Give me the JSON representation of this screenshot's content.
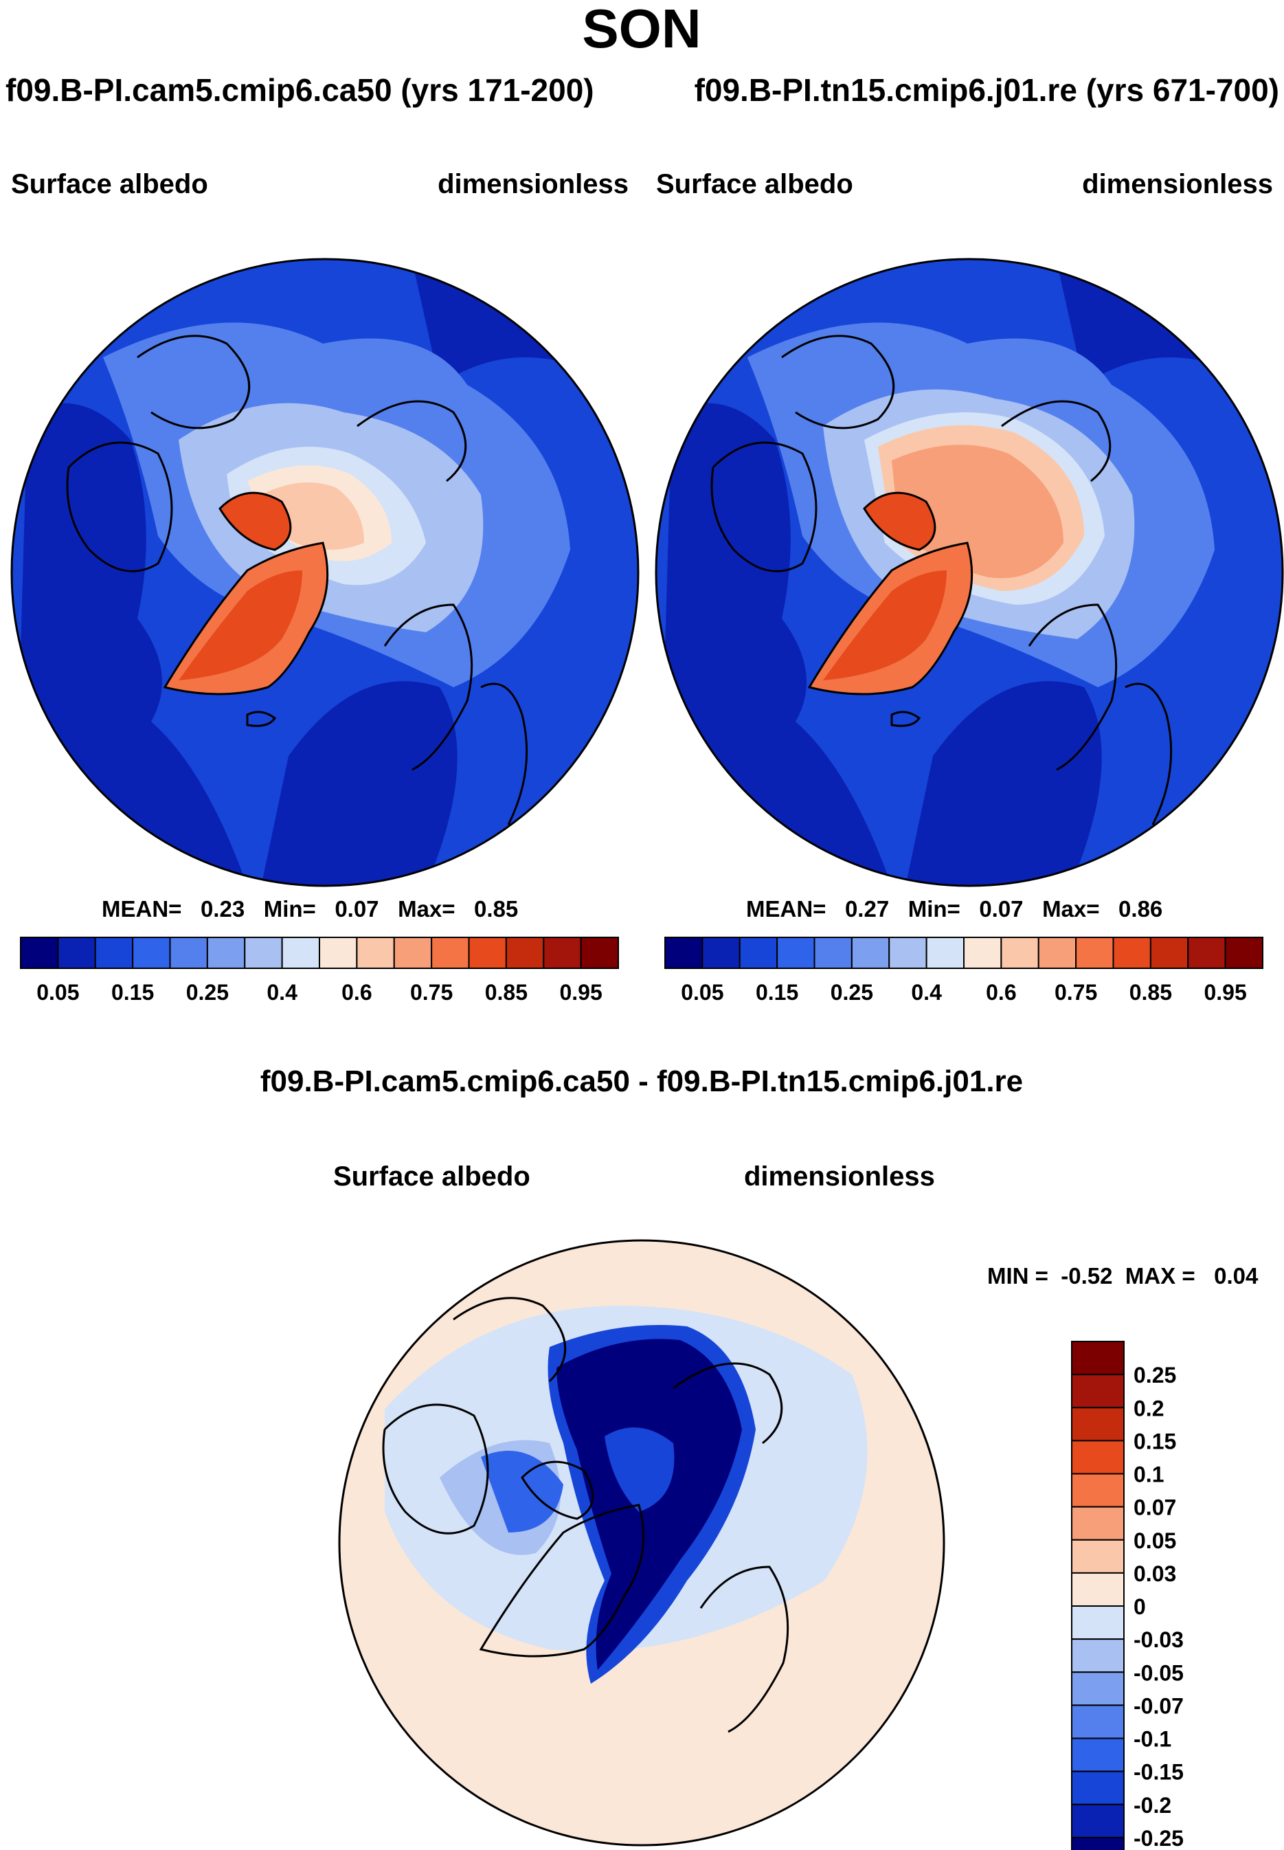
{
  "page_title": "SON",
  "panels": [
    {
      "case_title": "f09.B-PI.cam5.cmip6.ca50 (yrs 171-200)",
      "left_label": "Surface albedo",
      "right_label": "dimensionless",
      "stats": {
        "mean_label": "MEAN=",
        "mean": "0.23",
        "min_label": "Min=",
        "min": "0.07",
        "max_label": "Max=",
        "max": "0.85"
      }
    },
    {
      "case_title": "f09.B-PI.tn15.cmip6.j01.re (yrs 671-700)",
      "left_label": "Surface albedo",
      "right_label": "dimensionless",
      "stats": {
        "mean_label": "MEAN=",
        "mean": "0.27",
        "min_label": "Min=",
        "min": "0.07",
        "max_label": "Max=",
        "max": "0.86"
      }
    }
  ],
  "diff_panel": {
    "title": "f09.B-PI.cam5.cmip6.ca50 - f09.B-PI.tn15.cmip6.j01.re",
    "left_label": "Surface albedo",
    "right_label": "dimensionless",
    "minmax": {
      "min_label": "MIN =",
      "min": "-0.52",
      "max_label": "MAX =",
      "max": "0.04"
    }
  },
  "colorbar_abs": {
    "colors": [
      "#00007d",
      "#0a22b4",
      "#1745d8",
      "#2f63ea",
      "#5480ee",
      "#7d9ff0",
      "#a9c0f3",
      "#d4e3f7",
      "#fbe7d8",
      "#fbc7aa",
      "#f79f79",
      "#f47446",
      "#e64a1d",
      "#c52c0e",
      "#a3140a",
      "#7d0000"
    ],
    "labels": [
      "0.05",
      "0.15",
      "0.25",
      "0.4",
      "0.6",
      "0.75",
      "0.85",
      "0.95"
    ]
  },
  "colorbar_diff": {
    "colors_top_to_bottom": [
      "#7d0000",
      "#a3140a",
      "#c52c0e",
      "#e64a1d",
      "#f47446",
      "#f79f79",
      "#fbc7aa",
      "#fbe7d8",
      "#d4e3f7",
      "#a9c0f3",
      "#7d9ff0",
      "#5480ee",
      "#2f63ea",
      "#1745d8",
      "#0a22b4",
      "#00007d"
    ],
    "labels_top_to_bottom": [
      "0.25",
      "0.2",
      "0.15",
      "0.1",
      "0.07",
      "0.05",
      "0.03",
      "0",
      "-0.03",
      "-0.05",
      "-0.07",
      "-0.1",
      "-0.15",
      "-0.2",
      "-0.25"
    ]
  },
  "chart_data": [
    {
      "type": "heatmap",
      "title": "f09.B-PI.cam5.cmip6.ca50 (yrs 171-200)",
      "variable": "Surface albedo",
      "units": "dimensionless",
      "projection": "north polar stereographic",
      "levels": [
        0.05,
        0.1,
        0.15,
        0.2,
        0.25,
        0.3,
        0.4,
        0.5,
        0.6,
        0.7,
        0.75,
        0.8,
        0.85,
        0.9,
        0.95
      ],
      "mean": 0.23,
      "min": 0.07,
      "max": 0.85
    },
    {
      "type": "heatmap",
      "title": "f09.B-PI.tn15.cmip6.j01.re (yrs 671-700)",
      "variable": "Surface albedo",
      "units": "dimensionless",
      "projection": "north polar stereographic",
      "levels": [
        0.05,
        0.1,
        0.15,
        0.2,
        0.25,
        0.3,
        0.4,
        0.5,
        0.6,
        0.7,
        0.75,
        0.8,
        0.85,
        0.9,
        0.95
      ],
      "mean": 0.27,
      "min": 0.07,
      "max": 0.86
    },
    {
      "type": "heatmap",
      "title": "f09.B-PI.cam5.cmip6.ca50 - f09.B-PI.tn15.cmip6.j01.re",
      "variable": "Surface albedo",
      "units": "dimensionless",
      "projection": "north polar stereographic",
      "levels": [
        -0.25,
        -0.2,
        -0.15,
        -0.1,
        -0.07,
        -0.05,
        -0.03,
        0,
        0.03,
        0.05,
        0.07,
        0.1,
        0.15,
        0.2,
        0.25
      ],
      "min": -0.52,
      "max": 0.04
    }
  ]
}
